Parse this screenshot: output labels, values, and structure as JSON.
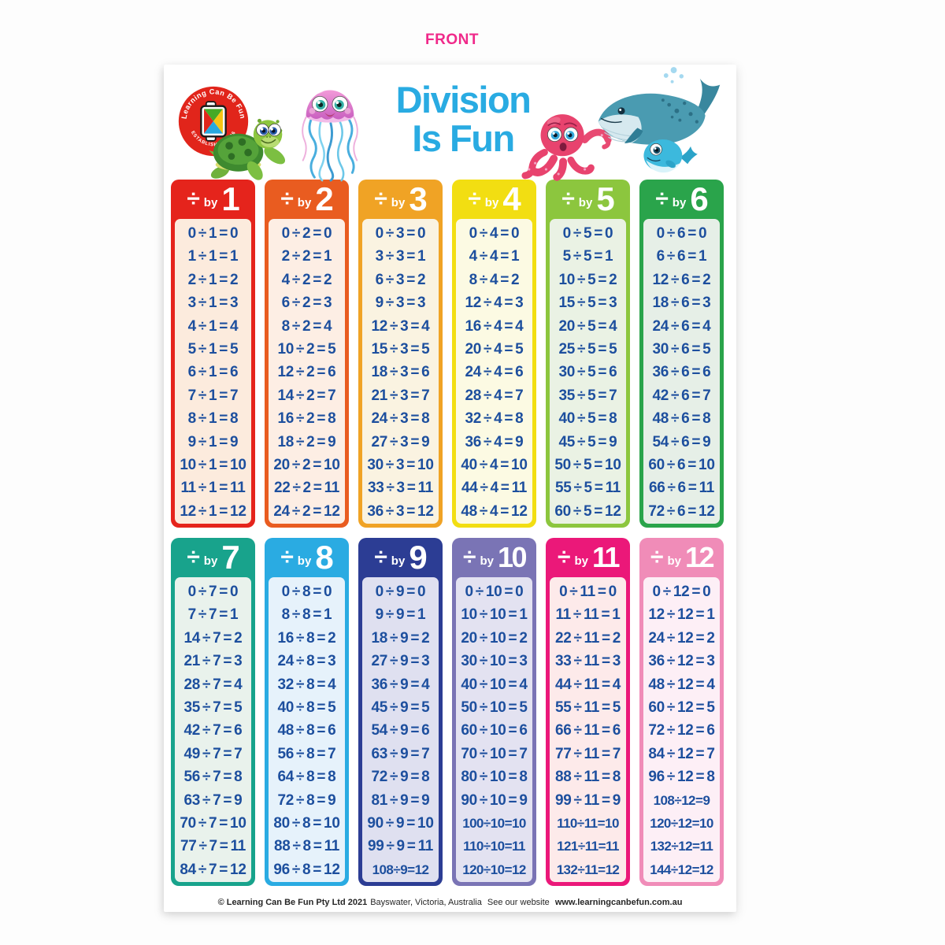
{
  "front_label": "FRONT",
  "title": {
    "line1": "Division",
    "line2": "Is Fun",
    "color": "#29abe2"
  },
  "logo": {
    "arc_top": "Learning Can Be Fun",
    "arc_bottom": "ESTABLISHED 1986",
    "circle_color": "#e1251b"
  },
  "illustrations": [
    "turtle",
    "jellyfish",
    "octopus",
    "whale-and-calf"
  ],
  "card_header": {
    "symbol": "÷",
    "by_label": "by"
  },
  "equation_text_color": "#1d4f9e",
  "columns": [
    {
      "divisor": "1",
      "header_color": "#e5241c",
      "body_bg": "#fcebdd",
      "rows": [
        "0 ÷ 1 = 0",
        "1 ÷ 1 = 1",
        "2 ÷ 1 = 2",
        "3 ÷ 1 = 3",
        "4 ÷ 1 = 4",
        "5 ÷ 1 = 5",
        "6 ÷ 1 = 6",
        "7 ÷ 1 = 7",
        "8 ÷ 1 = 8",
        "9 ÷ 1 = 9",
        "10 ÷ 1 = 10",
        "11 ÷ 1 = 11",
        "12 ÷ 1 = 12"
      ]
    },
    {
      "divisor": "2",
      "header_color": "#e95c20",
      "body_bg": "#fdeee4",
      "rows": [
        "0 ÷ 2 = 0",
        "2 ÷ 2 = 1",
        "4 ÷ 2 = 2",
        "6 ÷ 2 = 3",
        "8 ÷ 2 = 4",
        "10 ÷ 2 = 5",
        "12 ÷ 2 = 6",
        "14 ÷ 2 = 7",
        "16 ÷ 2 = 8",
        "18 ÷ 2 = 9",
        "20 ÷ 2 = 10",
        "22 ÷ 2 = 11",
        "24 ÷ 2 = 12"
      ]
    },
    {
      "divisor": "3",
      "header_color": "#f0a325",
      "body_bg": "#faf3e1",
      "rows": [
        "0 ÷ 3 = 0",
        "3 ÷ 3 = 1",
        "6 ÷ 3 = 2",
        "9 ÷ 3 = 3",
        "12 ÷ 3 = 4",
        "15 ÷ 3 = 5",
        "18 ÷ 3 = 6",
        "21 ÷ 3 = 7",
        "24 ÷ 3 = 8",
        "27 ÷ 3 = 9",
        "30 ÷ 3 = 10",
        "33 ÷ 3 = 11",
        "36 ÷ 3 = 12"
      ]
    },
    {
      "divisor": "4",
      "header_color": "#f2de12",
      "body_bg": "#fcfae3",
      "rows": [
        "0 ÷ 4 = 0",
        "4 ÷ 4 = 1",
        "8 ÷ 4 = 2",
        "12 ÷ 4 = 3",
        "16 ÷ 4 = 4",
        "20 ÷ 4 = 5",
        "24 ÷ 4 = 6",
        "28 ÷ 4 = 7",
        "32 ÷ 4 = 8",
        "36 ÷ 4 = 9",
        "40 ÷ 4 = 10",
        "44 ÷ 4 = 11",
        "48 ÷ 4 = 12"
      ]
    },
    {
      "divisor": "5",
      "header_color": "#8cc63e",
      "body_bg": "#eaf2e4",
      "rows": [
        "0 ÷ 5 = 0",
        "5 ÷ 5 = 1",
        "10 ÷ 5 = 2",
        "15 ÷ 5 = 3",
        "20 ÷ 5 = 4",
        "25 ÷ 5 = 5",
        "30 ÷ 5 = 6",
        "35 ÷ 5 = 7",
        "40 ÷ 5 = 8",
        "45 ÷ 5 = 9",
        "50 ÷ 5 = 10",
        "55 ÷ 5 = 11",
        "60 ÷ 5 = 12"
      ]
    },
    {
      "divisor": "6",
      "header_color": "#2aa44b",
      "body_bg": "#e6efe7",
      "rows": [
        "0 ÷ 6 = 0",
        "6 ÷ 6 = 1",
        "12 ÷ 6 = 2",
        "18 ÷ 6 = 3",
        "24 ÷ 6 = 4",
        "30 ÷ 6 = 5",
        "36 ÷ 6 = 6",
        "42 ÷ 6 = 7",
        "48 ÷ 6 = 8",
        "54 ÷ 6 = 9",
        "60 ÷ 6 = 10",
        "66 ÷ 6 = 11",
        "72 ÷ 6 = 12"
      ]
    },
    {
      "divisor": "7",
      "header_color": "#18a38c",
      "body_bg": "#e9f2ec",
      "rows": [
        "0 ÷ 7 = 0",
        "7 ÷ 7 = 1",
        "14 ÷ 7 = 2",
        "21 ÷ 7 = 3",
        "28 ÷ 7 = 4",
        "35 ÷ 7 = 5",
        "42 ÷ 7 = 6",
        "49 ÷ 7 = 7",
        "56 ÷ 7 = 8",
        "63 ÷ 7 = 9",
        "70 ÷ 7 = 10",
        "77 ÷ 7 = 11",
        "84 ÷ 7 = 12"
      ]
    },
    {
      "divisor": "8",
      "header_color": "#2aabe2",
      "body_bg": "#e6f2fb",
      "rows": [
        "0 ÷ 8 = 0",
        "8 ÷ 8 = 1",
        "16 ÷ 8 = 2",
        "24 ÷ 8 = 3",
        "32 ÷ 8 = 4",
        "40 ÷ 8 = 5",
        "48 ÷ 8 = 6",
        "56 ÷ 8 = 7",
        "64 ÷ 8 = 8",
        "72 ÷ 8 = 9",
        "80 ÷ 8 = 10",
        "88 ÷ 8 = 11",
        "96 ÷ 8 = 12"
      ]
    },
    {
      "divisor": "9",
      "header_color": "#2c3d94",
      "body_bg": "#dfe0f0",
      "rows": [
        "0 ÷ 9 = 0",
        "9 ÷ 9 = 1",
        "18 ÷ 9 = 2",
        "27 ÷ 9 = 3",
        "36 ÷ 9 = 4",
        "45 ÷ 9 = 5",
        "54 ÷ 9 = 6",
        "63 ÷ 9 = 7",
        "72 ÷ 9 = 8",
        "81 ÷ 9 = 9",
        "90 ÷ 9 = 10",
        "99 ÷ 9 = 11",
        "108 ÷ 9 = 12"
      ]
    },
    {
      "divisor": "10",
      "header_color": "#7a74b5",
      "body_bg": "#e3e2f1",
      "rows": [
        "0 ÷ 10 = 0",
        "10 ÷ 10 = 1",
        "20 ÷ 10 = 2",
        "30 ÷ 10 = 3",
        "40 ÷ 10 = 4",
        "50 ÷ 10 = 5",
        "60 ÷ 10 = 6",
        "70 ÷ 10 = 7",
        "80 ÷ 10 = 8",
        "90 ÷ 10 = 9",
        "100 ÷ 10 = 10",
        "110 ÷ 10 = 11",
        "120 ÷ 10 = 12"
      ]
    },
    {
      "divisor": "11",
      "header_color": "#eb1879",
      "body_bg": "#fdeaea",
      "rows": [
        "0 ÷ 11 = 0",
        "11 ÷ 11 = 1",
        "22 ÷ 11 = 2",
        "33 ÷ 11 = 3",
        "44 ÷ 11 = 4",
        "55 ÷ 11 = 5",
        "66 ÷ 11 = 6",
        "77 ÷ 11 = 7",
        "88 ÷ 11 = 8",
        "99 ÷ 11 = 9",
        "110 ÷ 11 = 10",
        "121 ÷ 11 = 11",
        "132 ÷ 11 = 12"
      ]
    },
    {
      "divisor": "12",
      "header_color": "#f08cb8",
      "body_bg": "#fdeff6",
      "rows": [
        "0 ÷ 12 = 0",
        "12 ÷ 12 = 1",
        "24 ÷ 12 = 2",
        "36 ÷ 12 = 3",
        "48 ÷ 12 = 4",
        "60 ÷ 12 = 5",
        "72 ÷ 12 = 6",
        "84 ÷ 12 = 7",
        "96 ÷ 12 = 8",
        "108 ÷ 12 = 9",
        "120 ÷ 12 = 10",
        "132 ÷ 12 = 11",
        "144 ÷ 12 = 12"
      ]
    }
  ],
  "footer": {
    "copyright": "© Learning Can Be Fun Pty Ltd 2021",
    "location": "Bayswater, Victoria, Australia",
    "website_label": "See our website",
    "website_url": "www.learningcanbefun.com.au"
  }
}
